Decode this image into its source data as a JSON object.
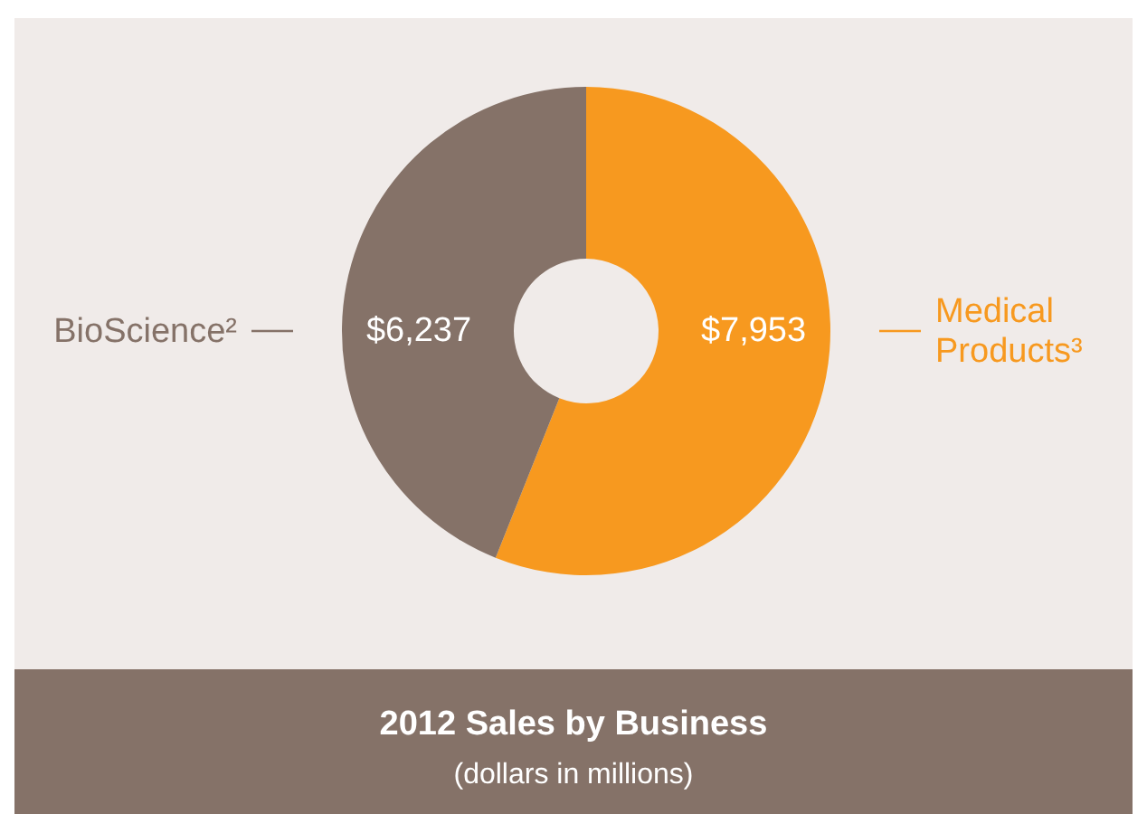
{
  "chart_data": {
    "type": "donut",
    "title": "2012 Sales by Business",
    "subtitle": "(dollars in millions)",
    "categories": [
      "Medical Products³",
      "BioScience²"
    ],
    "values": [
      7953,
      6237
    ],
    "colors": [
      "#f7991f",
      "#857268"
    ],
    "value_labels": [
      "$7,953",
      "$6,237"
    ]
  }
}
